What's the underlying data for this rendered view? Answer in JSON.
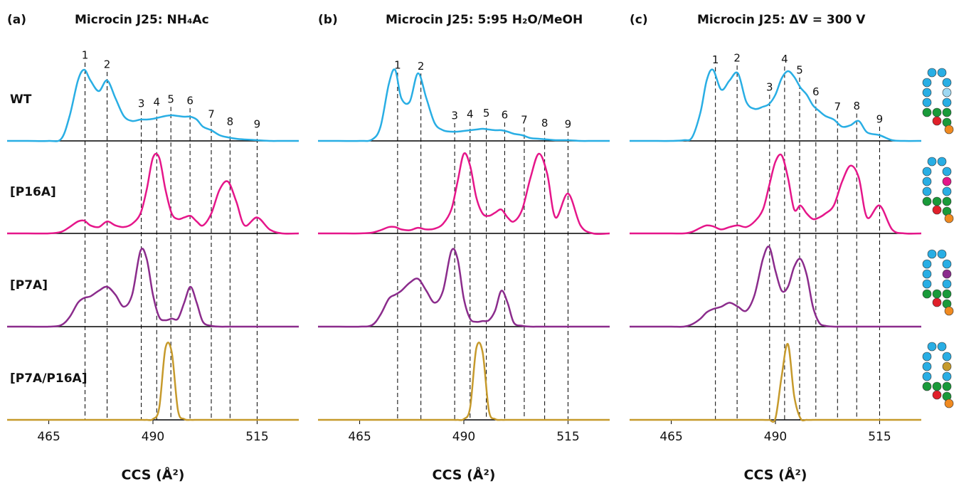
{
  "chart_data": [
    {
      "type": "line",
      "panel_label": "(a)",
      "title": "Microcin J25: NH₄Ac",
      "xlabel": "CCS (Å²)",
      "xlim": [
        455,
        525
      ],
      "xticks": [
        465,
        490,
        515
      ],
      "x": [
        455,
        460,
        465,
        468,
        470,
        472,
        473.5,
        475,
        477,
        479,
        481,
        483,
        485,
        487,
        488.5,
        490,
        491.5,
        493,
        494.5,
        496,
        497.5,
        499,
        500.5,
        502,
        504,
        506,
        508,
        510,
        512,
        515,
        518,
        521,
        525
      ],
      "peak_labels": [
        "1",
        "2",
        "3",
        "4",
        "5",
        "6",
        "7",
        "8",
        "9"
      ],
      "peak_positions": [
        473.7,
        479,
        487.2,
        490.9,
        494.3,
        498.9,
        504,
        508.5,
        515
      ],
      "series": [
        {
          "name": "WT",
          "color": "#29aee4",
          "values": [
            0,
            0,
            0,
            0.03,
            0.35,
            0.85,
            1.0,
            0.85,
            0.7,
            0.85,
            0.6,
            0.35,
            0.28,
            0.3,
            0.3,
            0.31,
            0.33,
            0.35,
            0.36,
            0.35,
            0.34,
            0.34,
            0.3,
            0.2,
            0.15,
            0.08,
            0.05,
            0.03,
            0.02,
            0.01,
            0,
            0,
            0
          ]
        },
        {
          "name": "[P16A]",
          "color": "#e5168a",
          "values": [
            0,
            0,
            0,
            0.02,
            0.08,
            0.15,
            0.16,
            0.1,
            0.08,
            0.15,
            0.1,
            0.08,
            0.12,
            0.25,
            0.55,
            0.95,
            0.95,
            0.55,
            0.25,
            0.18,
            0.2,
            0.22,
            0.15,
            0.1,
            0.25,
            0.55,
            0.65,
            0.4,
            0.1,
            0.2,
            0.05,
            0,
            0
          ]
        },
        {
          "name": "[P7A]",
          "color": "#8b2c8c",
          "values": [
            0,
            0,
            0,
            0.02,
            0.12,
            0.3,
            0.36,
            0.38,
            0.45,
            0.5,
            0.4,
            0.25,
            0.4,
            0.95,
            0.85,
            0.4,
            0.12,
            0.08,
            0.1,
            0.1,
            0.3,
            0.5,
            0.3,
            0.06,
            0.01,
            0,
            0,
            0,
            0,
            0,
            0,
            0,
            0
          ]
        },
        {
          "name": "[P7A/P16A]",
          "color": "#c69a2c",
          "values": [
            0,
            0,
            0,
            0,
            0,
            0,
            0,
            0,
            0,
            0,
            0,
            0,
            0,
            0,
            0,
            0.01,
            0.15,
            0.9,
            0.85,
            0.12,
            0.01,
            0,
            0,
            0,
            0,
            0,
            0,
            0,
            0,
            0,
            0,
            0,
            0
          ]
        }
      ]
    },
    {
      "type": "line",
      "panel_label": "(b)",
      "title": "Microcin J25: 5:95 H₂O/MeOH",
      "xlabel": "CCS (Å²)",
      "xlim": [
        455,
        525
      ],
      "xticks": [
        465,
        490,
        515
      ],
      "x": [
        455,
        460,
        465,
        468,
        470,
        472,
        473.5,
        475,
        477,
        479,
        481,
        483,
        485,
        487,
        488.5,
        490,
        491.5,
        493,
        494.5,
        496,
        497.5,
        499,
        500.5,
        502,
        504,
        506,
        508,
        510,
        512,
        515,
        518,
        521,
        525
      ],
      "peak_labels": [
        "1",
        "2",
        "3",
        "4",
        "5",
        "6",
        "7",
        "8",
        "9"
      ],
      "peak_positions": [
        474.1,
        479.7,
        487.8,
        491.5,
        495.4,
        499.8,
        504.5,
        509.4,
        515
      ],
      "series": [
        {
          "name": "WT",
          "color": "#29aee4",
          "values": [
            0,
            0,
            0,
            0.02,
            0.2,
            0.8,
            1.0,
            0.6,
            0.55,
            0.95,
            0.6,
            0.25,
            0.15,
            0.13,
            0.13,
            0.14,
            0.15,
            0.16,
            0.17,
            0.16,
            0.15,
            0.15,
            0.13,
            0.1,
            0.08,
            0.04,
            0.03,
            0.02,
            0.01,
            0.01,
            0,
            0,
            0
          ]
        },
        {
          "name": "[P16A]",
          "color": "#e5168a",
          "values": [
            0,
            0,
            0,
            0.01,
            0.04,
            0.08,
            0.08,
            0.05,
            0.04,
            0.07,
            0.05,
            0.06,
            0.12,
            0.3,
            0.65,
            1.0,
            0.85,
            0.45,
            0.25,
            0.22,
            0.26,
            0.3,
            0.2,
            0.15,
            0.3,
            0.7,
            1.0,
            0.75,
            0.2,
            0.5,
            0.1,
            0,
            0
          ]
        },
        {
          "name": "[P7A]",
          "color": "#8b2c8c",
          "values": [
            0,
            0,
            0,
            0.02,
            0.15,
            0.35,
            0.4,
            0.45,
            0.55,
            0.6,
            0.45,
            0.3,
            0.45,
            0.95,
            0.85,
            0.35,
            0.1,
            0.06,
            0.07,
            0.08,
            0.2,
            0.45,
            0.3,
            0.05,
            0.01,
            0,
            0,
            0,
            0,
            0,
            0,
            0,
            0
          ]
        },
        {
          "name": "[P7A/P16A]",
          "color": "#c69a2c",
          "values": [
            0,
            0,
            0,
            0,
            0,
            0,
            0,
            0,
            0,
            0,
            0,
            0,
            0,
            0,
            0,
            0.01,
            0.15,
            0.9,
            0.85,
            0.12,
            0.01,
            0,
            0,
            0,
            0,
            0,
            0,
            0,
            0,
            0,
            0,
            0,
            0
          ]
        }
      ]
    },
    {
      "type": "line",
      "panel_label": "(c)",
      "title": "Microcin J25: ΔV = 300 V",
      "xlabel": "CCS (Å²)",
      "xlim": [
        455,
        525
      ],
      "xticks": [
        465,
        490,
        515
      ],
      "x": [
        455,
        460,
        465,
        468,
        470,
        472,
        473.5,
        475,
        477,
        479,
        481,
        483,
        485,
        487,
        488.5,
        490,
        491.5,
        493,
        494.5,
        496,
        497.5,
        499,
        500.5,
        502,
        504,
        506,
        508,
        510,
        512,
        515,
        518,
        521,
        525
      ],
      "peak_labels": [
        "1",
        "2",
        "3",
        "4",
        "5",
        "6",
        "7",
        "8",
        "9"
      ],
      "peak_positions": [
        475.6,
        480.8,
        488.6,
        492.2,
        495.8,
        499.7,
        504.9,
        509.5,
        515
      ],
      "series": [
        {
          "name": "WT",
          "color": "#29aee4",
          "values": [
            0,
            0,
            0,
            0.01,
            0.05,
            0.4,
            0.85,
            1.0,
            0.72,
            0.85,
            0.95,
            0.55,
            0.45,
            0.48,
            0.52,
            0.65,
            0.88,
            0.98,
            0.9,
            0.75,
            0.65,
            0.5,
            0.42,
            0.35,
            0.3,
            0.2,
            0.22,
            0.28,
            0.12,
            0.08,
            0.01,
            0,
            0
          ]
        },
        {
          "name": "[P16A]",
          "color": "#e5168a",
          "values": [
            0,
            0,
            0,
            0,
            0.02,
            0.07,
            0.1,
            0.09,
            0.05,
            0.08,
            0.1,
            0.08,
            0.15,
            0.3,
            0.6,
            0.9,
            0.98,
            0.7,
            0.3,
            0.35,
            0.25,
            0.18,
            0.2,
            0.25,
            0.35,
            0.65,
            0.85,
            0.7,
            0.2,
            0.35,
            0.05,
            0,
            0
          ]
        },
        {
          "name": "[P7A]",
          "color": "#8b2c8c",
          "values": [
            0,
            0,
            0,
            0,
            0.03,
            0.1,
            0.18,
            0.22,
            0.25,
            0.3,
            0.25,
            0.2,
            0.4,
            0.85,
            1.0,
            0.7,
            0.45,
            0.5,
            0.75,
            0.85,
            0.65,
            0.25,
            0.05,
            0.01,
            0,
            0,
            0,
            0,
            0,
            0,
            0,
            0,
            0
          ]
        },
        {
          "name": "[P7A/P16A]",
          "color": "#c69a2c",
          "values": [
            0,
            0,
            0,
            0,
            0,
            0,
            0,
            0,
            0,
            0,
            0,
            0,
            0,
            0,
            0,
            0.02,
            0.55,
            0.95,
            0.3,
            0.02,
            0,
            0,
            0,
            0,
            0,
            0,
            0,
            0,
            0,
            0,
            0,
            0,
            0
          ]
        }
      ]
    }
  ]
}
